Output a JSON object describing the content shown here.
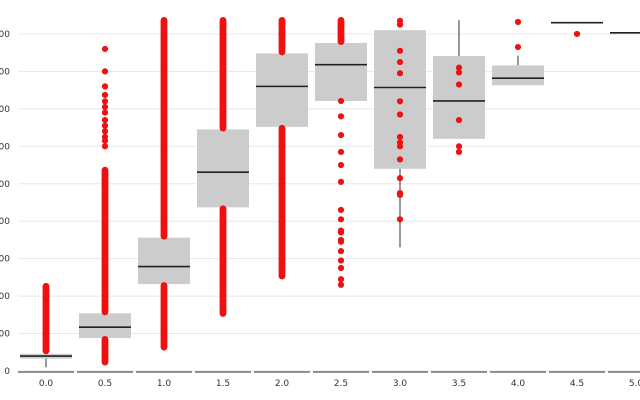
{
  "chart_data": {
    "type": "box",
    "title": "",
    "xlabel": "",
    "ylabel": "",
    "categories": [
      "0.0",
      "0.5",
      "1.0",
      "1.5",
      "2.0",
      "2.5",
      "3.0",
      "3.5",
      "4.0",
      "4.5",
      "5.0"
    ],
    "ylim": [
      0,
      1000
    ],
    "y_ticks_shown": 10,
    "gridlines": true,
    "box_color": "#cccccc",
    "point_color": "#ee1111",
    "boxes": [
      {
        "x": "0.0",
        "q1": 33,
        "median": 40,
        "q3": 46,
        "whisker_low": 10,
        "whisker_high": 50
      },
      {
        "x": "0.5",
        "q1": 88,
        "median": 117,
        "q3": 154,
        "whisker_low": 50,
        "whisker_high": 154
      },
      {
        "x": "1.0",
        "q1": 232,
        "median": 279,
        "q3": 356,
        "whisker_low": 232,
        "whisker_high": 356
      },
      {
        "x": "1.5",
        "q1": 437,
        "median": 531,
        "q3": 645,
        "whisker_low": 437,
        "whisker_high": 645
      },
      {
        "x": "2.0",
        "q1": 652,
        "median": 760,
        "q3": 848,
        "whisker_low": 652,
        "whisker_high": 848
      },
      {
        "x": "2.5",
        "q1": 721,
        "median": 818,
        "q3": 876,
        "whisker_low": 721,
        "whisker_high": 876
      },
      {
        "x": "3.0",
        "q1": 540,
        "median": 757,
        "q3": 910,
        "whisker_low": 330,
        "whisker_high": 910
      },
      {
        "x": "3.5",
        "q1": 620,
        "median": 721,
        "q3": 841,
        "whisker_low": 620,
        "whisker_high": 937
      },
      {
        "x": "4.0",
        "q1": 763,
        "median": 782,
        "q3": 816,
        "whisker_low": 763,
        "whisker_high": 842
      },
      {
        "x": "4.5",
        "q1": 930,
        "median": 930,
        "q3": 930,
        "whisker_low": 930,
        "whisker_high": 930
      },
      {
        "x": "5.0",
        "q1": 903,
        "median": 903,
        "q3": 903,
        "whisker_low": 903,
        "whisker_high": 903
      }
    ],
    "outliers": [
      {
        "x": "0.0",
        "ranges": [
          [
            50,
            230
          ]
        ]
      },
      {
        "x": "0.5",
        "ranges": [
          [
            20,
            88
          ],
          [
            154,
            540
          ]
        ],
        "points": [
          600,
          615,
          625,
          640,
          655,
          670,
          690,
          705,
          720,
          737,
          760,
          800,
          860
        ]
      },
      {
        "x": "1.0",
        "ranges": [
          [
            60,
            232
          ],
          [
            356,
            940
          ]
        ]
      },
      {
        "x": "1.5",
        "ranges": [
          [
            150,
            437
          ],
          [
            645,
            940
          ]
        ]
      },
      {
        "x": "2.0",
        "ranges": [
          [
            250,
            652
          ],
          [
            848,
            940
          ]
        ],
        "points": [
          258
        ]
      },
      {
        "x": "2.5",
        "ranges": [
          [
            876,
            940
          ]
        ],
        "points": [
          230,
          245,
          275,
          295,
          320,
          345,
          350,
          370,
          375,
          405,
          430,
          505,
          550,
          585,
          630,
          680,
          721
        ]
      },
      {
        "x": "3.0",
        "points": [
          405,
          470,
          475,
          515,
          565,
          600,
          610,
          625,
          685,
          720,
          795,
          825,
          855,
          925,
          935
        ]
      },
      {
        "x": "3.5",
        "points": [
          585,
          600,
          670,
          765,
          797,
          810
        ]
      },
      {
        "x": "4.0",
        "points": [
          865,
          932
        ]
      },
      {
        "x": "4.5",
        "points": [
          900
        ]
      }
    ]
  }
}
